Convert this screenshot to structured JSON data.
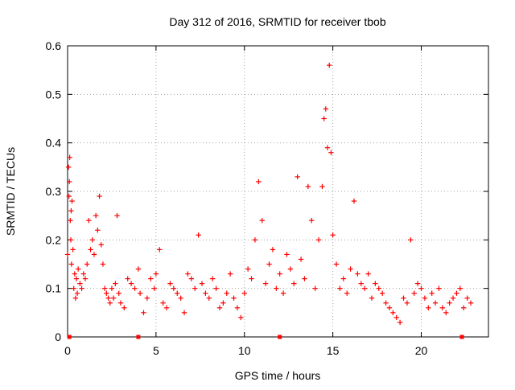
{
  "chart_data": {
    "type": "scatter",
    "title": "Day 312 of 2016, SRMTID for receiver tbob",
    "xlabel": "GPS time / hours",
    "ylabel": "SRMTID / TECUs",
    "xlim": [
      0,
      23.8
    ],
    "ylim": [
      0,
      0.6
    ],
    "grid": true,
    "marker": "plus",
    "color": "#ff0000",
    "xticks": [
      0,
      5,
      10,
      15,
      20
    ],
    "xtick_labels": [
      "0",
      "5",
      "10",
      "15",
      "20"
    ],
    "yticks": [
      0,
      0.1,
      0.2,
      0.3,
      0.4,
      0.5,
      0.6
    ],
    "ytick_labels": [
      "0",
      "0.1",
      "0.2",
      "0.3",
      "0.4",
      "0.5",
      "0.6"
    ],
    "series": [
      {
        "name": "SRMTID",
        "x": [
          0.0,
          0.05,
          0.08,
          0.1,
          0.12,
          0.15,
          0.18,
          0.2,
          0.22,
          0.25,
          0.3,
          0.35,
          0.4,
          0.45,
          0.5,
          0.55,
          0.6,
          0.7,
          0.8,
          0.9,
          1.0,
          1.1,
          1.2,
          1.3,
          1.4,
          1.5,
          1.6,
          1.7,
          1.8,
          1.9,
          2.0,
          2.1,
          2.2,
          2.3,
          2.4,
          2.5,
          2.6,
          2.7,
          2.8,
          2.9,
          3.0,
          3.2,
          3.4,
          3.6,
          3.8,
          4.0,
          4.1,
          4.3,
          4.5,
          4.7,
          4.9,
          5.0,
          5.2,
          5.4,
          5.6,
          5.8,
          6.0,
          6.2,
          6.4,
          6.6,
          6.8,
          7.0,
          7.2,
          7.4,
          7.6,
          7.8,
          8.0,
          8.2,
          8.4,
          8.6,
          8.8,
          9.0,
          9.2,
          9.4,
          9.6,
          9.8,
          10.0,
          10.2,
          10.4,
          10.6,
          10.8,
          11.0,
          11.2,
          11.4,
          11.6,
          11.8,
          12.0,
          12.2,
          12.4,
          12.6,
          12.8,
          13.0,
          13.2,
          13.4,
          13.6,
          13.8,
          14.0,
          14.2,
          14.4,
          14.5,
          14.6,
          14.7,
          14.8,
          14.9,
          15.0,
          15.2,
          15.4,
          15.6,
          15.8,
          16.0,
          16.2,
          16.4,
          16.6,
          16.8,
          17.0,
          17.2,
          17.4,
          17.6,
          17.8,
          18.0,
          18.2,
          18.4,
          18.6,
          18.8,
          19.0,
          19.2,
          19.4,
          19.6,
          19.8,
          20.0,
          20.2,
          20.4,
          20.6,
          20.8,
          21.0,
          21.2,
          21.4,
          21.6,
          21.8,
          22.0,
          22.2,
          22.4,
          22.6,
          22.8
        ],
        "y": [
          0.17,
          0.35,
          0.29,
          0.32,
          0.37,
          0.24,
          0.2,
          0.26,
          0.15,
          0.28,
          0.18,
          0.1,
          0.13,
          0.08,
          0.12,
          0.09,
          0.14,
          0.11,
          0.1,
          0.13,
          0.12,
          0.15,
          0.24,
          0.18,
          0.2,
          0.17,
          0.25,
          0.22,
          0.29,
          0.19,
          0.15,
          0.1,
          0.09,
          0.08,
          0.07,
          0.1,
          0.08,
          0.11,
          0.25,
          0.09,
          0.07,
          0.06,
          0.12,
          0.11,
          0.1,
          0.14,
          0.09,
          0.05,
          0.08,
          0.12,
          0.1,
          0.13,
          0.18,
          0.07,
          0.06,
          0.11,
          0.1,
          0.09,
          0.08,
          0.05,
          0.13,
          0.12,
          0.1,
          0.21,
          0.11,
          0.09,
          0.08,
          0.12,
          0.1,
          0.06,
          0.07,
          0.09,
          0.13,
          0.08,
          0.06,
          0.04,
          0.09,
          0.14,
          0.12,
          0.2,
          0.32,
          0.24,
          0.11,
          0.15,
          0.18,
          0.1,
          0.13,
          0.09,
          0.17,
          0.14,
          0.11,
          0.33,
          0.16,
          0.12,
          0.31,
          0.24,
          0.1,
          0.2,
          0.31,
          0.45,
          0.47,
          0.39,
          0.56,
          0.38,
          0.21,
          0.15,
          0.1,
          0.12,
          0.09,
          0.14,
          0.28,
          0.13,
          0.11,
          0.1,
          0.13,
          0.08,
          0.11,
          0.1,
          0.09,
          0.07,
          0.06,
          0.05,
          0.04,
          0.03,
          0.08,
          0.07,
          0.2,
          0.09,
          0.11,
          0.1,
          0.08,
          0.06,
          0.09,
          0.07,
          0.1,
          0.06,
          0.05,
          0.07,
          0.08,
          0.09,
          0.1,
          0.06,
          0.08,
          0.07
        ]
      }
    ],
    "bottom_markers_x": [
      0.1,
      4.0,
      12.0,
      22.3
    ]
  }
}
